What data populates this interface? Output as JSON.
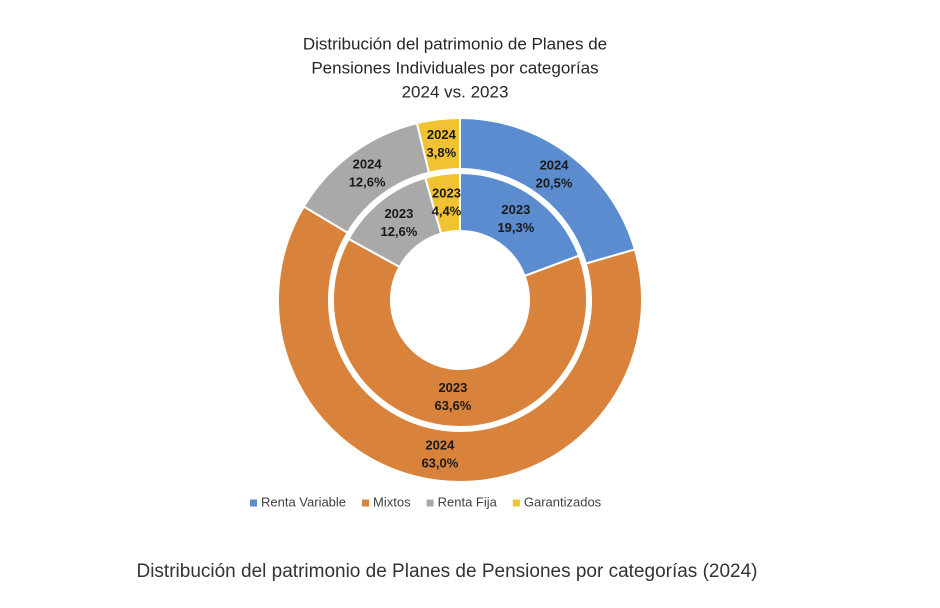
{
  "chart_data": {
    "type": "nested-donut",
    "title": [
      "Distribución del patrimonio de Planes de",
      "Pensiones Individuales por categorías",
      "2024 vs. 2023"
    ],
    "categories": [
      "Renta Variable",
      "Mixtos",
      "Renta Fija",
      "Garantizados"
    ],
    "colors": [
      "#5a8ccf",
      "#d9823b",
      "#a9a9a9",
      "#f1c232"
    ],
    "series": [
      {
        "name": "2024",
        "values": [
          20.5,
          63.0,
          12.6,
          3.8
        ],
        "value_labels": [
          "20,5%",
          "63,0%",
          "12,6%",
          "3,8%"
        ]
      },
      {
        "name": "2023",
        "values": [
          19.3,
          63.6,
          12.6,
          4.4
        ],
        "value_labels": [
          "19,3%",
          "63,6%",
          "12,6%",
          "4,4%"
        ]
      }
    ],
    "legend": "bottom"
  },
  "caption": "Distribución del patrimonio de Planes de Pensiones por categorías (2024)"
}
